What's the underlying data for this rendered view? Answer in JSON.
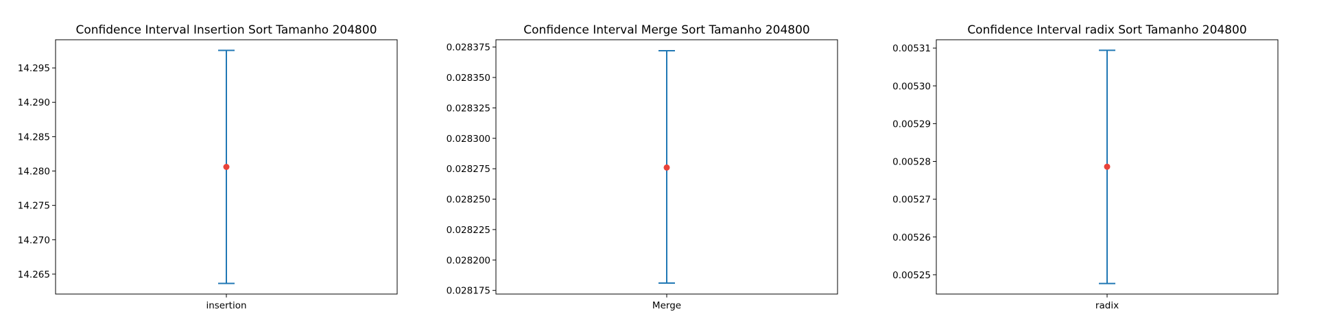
{
  "colors": {
    "errorbar": "#1f77b4",
    "mean_point": "#e8433a"
  },
  "chart_data": [
    {
      "type": "scatter",
      "title": "Confidence Interval Insertion Sort Tamanho 204800",
      "xlabel": "",
      "ylabel": "",
      "category": "insertion",
      "mean": 14.2806,
      "ci_lower": 14.26365,
      "ci_upper": 14.29755,
      "ylim": [
        14.2621,
        14.2991
      ],
      "yticks": [
        14.265,
        14.27,
        14.275,
        14.28,
        14.285,
        14.29,
        14.295
      ],
      "ytick_labels": [
        "14.265",
        "14.270",
        "14.275",
        "14.280",
        "14.285",
        "14.290",
        "14.295"
      ],
      "grid": false,
      "legend": "none"
    },
    {
      "type": "scatter",
      "title": "Confidence Interval Merge Sort Tamanho 204800",
      "xlabel": "",
      "ylabel": "",
      "category": "Merge",
      "mean": 0.028276,
      "ci_lower": 0.028181,
      "ci_upper": 0.028372,
      "ylim": [
        0.028172,
        0.028381
      ],
      "yticks": [
        0.028175,
        0.0282,
        0.028225,
        0.02825,
        0.028275,
        0.0283,
        0.028325,
        0.02835,
        0.028375
      ],
      "ytick_labels": [
        "0.028175",
        "0.028200",
        "0.028225",
        "0.028250",
        "0.028275",
        "0.028300",
        "0.028325",
        "0.028350",
        "0.028375"
      ],
      "grid": false,
      "legend": "none"
    },
    {
      "type": "scatter",
      "title": "Confidence Interval radix Sort Tamanho 204800",
      "xlabel": "",
      "ylabel": "",
      "category": "radix",
      "mean": 0.0052786,
      "ci_lower": 0.0052477,
      "ci_upper": 0.0053094,
      "ylim": [
        0.0052449,
        0.0053122
      ],
      "yticks": [
        0.00525,
        0.00526,
        0.00527,
        0.00528,
        0.00529,
        0.0053,
        0.00531
      ],
      "ytick_labels": [
        "0.00525",
        "0.00526",
        "0.00527",
        "0.00528",
        "0.00529",
        "0.00530",
        "0.00531"
      ],
      "grid": false,
      "legend": "none"
    }
  ]
}
